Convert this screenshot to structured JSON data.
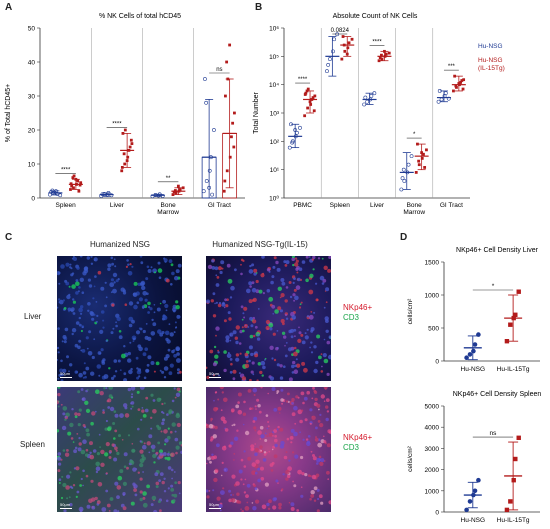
{
  "panels": {
    "a": "A",
    "b": "B",
    "c": "C",
    "d": "D"
  },
  "colors": {
    "blue": "#1f3a93",
    "red": "#b31b1b"
  },
  "chart_data": [
    {
      "type": "scatter",
      "id": "A",
      "title": "% NK Cells of total hCD45",
      "ylabel": "% of Total hCD45+",
      "ylim": [
        0,
        50
      ],
      "yticks": [
        "0",
        "10",
        "20",
        "30",
        "40",
        "50"
      ],
      "categories": [
        "Spleen",
        "Liver",
        "Bone Marrow",
        "GI Tract"
      ],
      "category_labels": [
        [
          "Spleen"
        ],
        [
          "Liver"
        ],
        [
          "Bone",
          "Marrow"
        ],
        [
          "GI Tract"
        ]
      ],
      "significance": [
        "****",
        "****",
        "**",
        "ns"
      ],
      "series": [
        {
          "name": "Hu-NSG",
          "means": [
            1.5,
            1.0,
            0.8,
            12
          ],
          "err": [
            0.6,
            0.5,
            0.3,
            17
          ],
          "points": [
            [
              1,
              1.5,
              2,
              1.2,
              0.8,
              1.8,
              2.2,
              1.4
            ],
            [
              0.6,
              1.2,
              0.9,
              1.5,
              0.8,
              1.1
            ],
            [
              0.5,
              0.9,
              0.7,
              1.1,
              0.6
            ],
            [
              2,
              5,
              8,
              12,
              20,
              35,
              28,
              3,
              1
            ]
          ]
        },
        {
          "name": "Hu-NSG (IL-15Tg)",
          "means": [
            4,
            14,
            2,
            19
          ],
          "err": [
            1.5,
            5,
            1,
            16
          ],
          "points": [
            [
              2.5,
              3,
              4,
              5,
              4.5,
              3.5,
              6,
              5.5,
              2,
              3.8,
              4.2,
              6.5
            ],
            [
              8,
              10,
              12,
              14,
              16,
              19,
              13,
              11,
              15,
              17,
              9,
              20
            ],
            [
              1,
              1.5,
              2,
              2.5,
              3,
              1.8,
              2.2,
              3.5
            ],
            [
              2,
              8,
              12,
              18,
              25,
              30,
              40,
              45,
              22,
              15,
              5,
              35
            ]
          ]
        }
      ],
      "bar_groups": [
        3
      ]
    },
    {
      "type": "scatter",
      "id": "B",
      "title": "Absolute Count of NK Cells",
      "ylabel": "Total Number",
      "scale": "log",
      "ylim": [
        1,
        1000000
      ],
      "yticks": [
        "10⁰",
        "10¹",
        "10²",
        "10³",
        "10⁴",
        "10⁵",
        "10⁶"
      ],
      "categories": [
        "PBMC",
        "Spleen",
        "Liver",
        "Bone Marrow",
        "GI Tract"
      ],
      "category_labels": [
        [
          "PBMC"
        ],
        [
          "Spleen"
        ],
        [
          "Liver"
        ],
        [
          "Bone",
          "Marrow"
        ],
        [
          "GI Tract"
        ]
      ],
      "significance": [
        "****",
        "0.0824",
        "****",
        "*",
        "***"
      ],
      "legend": [
        "Hu-NSG",
        "Hu-NSG",
        "(IL-15Tg)"
      ],
      "series": [
        {
          "name": "Hu-NSG",
          "means": [
            150,
            100000,
            3000,
            8,
            3500
          ],
          "err_lo": [
            60,
            20000,
            2000,
            2,
            2500
          ],
          "err_hi": [
            400,
            500000,
            5000,
            40,
            6000
          ],
          "points": [
            [
              60,
              100,
              150,
              200,
              300,
              400,
              90,
              250
            ],
            [
              30000,
              80000,
              150000,
              400000,
              600000,
              50000
            ],
            [
              2000,
              2500,
              3000,
              4000,
              5000,
              3500
            ],
            [
              2,
              4,
              8,
              15,
              30,
              5,
              10
            ],
            [
              2500,
              3000,
              4000,
              5000,
              3200,
              6000
            ]
          ]
        },
        {
          "name": "Hu-NSG (IL-15Tg)",
          "means": [
            3000,
            250000,
            100000,
            30,
            10000
          ],
          "err_lo": [
            1000,
            100000,
            70000,
            10,
            6000
          ],
          "err_hi": [
            6000,
            500000,
            150000,
            80,
            20000
          ],
          "points": [
            [
              800,
              1500,
              2000,
              3000,
              4000,
              5000,
              6000,
              2500,
              3500,
              1200,
              4500,
              7000
            ],
            [
              80000,
              150000,
              200000,
              300000,
              400000,
              500000,
              250000,
              120000
            ],
            [
              70000,
              80000,
              100000,
              120000,
              130000,
              90000,
              110000,
              150000
            ],
            [
              8,
              15,
              25,
              35,
              50,
              80,
              20,
              40,
              12
            ],
            [
              6000,
              8000,
              10000,
              12000,
              15000,
              20000,
              9000,
              11000,
              14000,
              7000
            ]
          ]
        }
      ]
    },
    {
      "type": "scatter",
      "id": "D1",
      "title": "NKp46+ Cell Density Liver",
      "ylabel": "cells/cm²",
      "ylim": [
        0,
        1500
      ],
      "yticks": [
        "0",
        "500",
        "1000",
        "1500"
      ],
      "categories": [
        "Hu-NSG",
        "Hu-IL-15Tg"
      ],
      "significance": "*",
      "series": [
        {
          "name": "Hu-NSG",
          "mean": 200,
          "err": 180,
          "points": [
            50,
            100,
            150,
            250,
            400
          ]
        },
        {
          "name": "Hu-IL-15Tg",
          "mean": 650,
          "err": 350,
          "points": [
            300,
            550,
            650,
            700,
            1050
          ]
        }
      ]
    },
    {
      "type": "scatter",
      "id": "D2",
      "title": "NKp46+ Cell Density Spleen",
      "ylabel": "cells/cm²",
      "ylim": [
        0,
        5000
      ],
      "yticks": [
        "0",
        "1000",
        "2000",
        "3000",
        "4000",
        "5000"
      ],
      "categories": [
        "Hu-NSG",
        "Hu-IL-15Tg"
      ],
      "significance": "ns",
      "series": [
        {
          "name": "Hu-NSG",
          "mean": 800,
          "err": 600,
          "points": [
            100,
            500,
            800,
            1000,
            1500
          ]
        },
        {
          "name": "Hu-IL-15Tg",
          "mean": 1700,
          "err": 1600,
          "points": [
            100,
            500,
            1500,
            2500,
            3500
          ]
        }
      ]
    }
  ],
  "panel_c": {
    "col_titles": [
      "Humanized NSG",
      "Humanized NSG-Tg(IL-15)"
    ],
    "rows": [
      "Liver",
      "Spleen"
    ],
    "stain_red": "NKp46+",
    "stain_green": "CD3",
    "scalebar": "50μm"
  }
}
